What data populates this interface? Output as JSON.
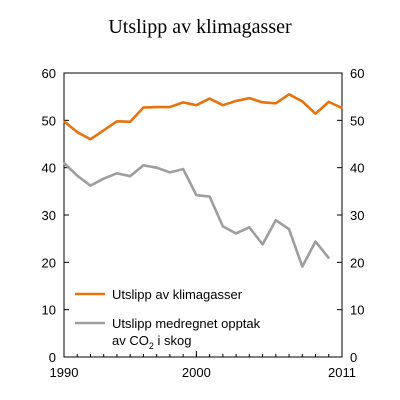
{
  "chart_data": {
    "type": "line",
    "title": "Utslipp av klimagasser",
    "xlim": [
      1990,
      2011
    ],
    "ylim": [
      0,
      60
    ],
    "grid": false,
    "legend_placement": "bottom-left",
    "x_ticks": [
      1990,
      2000,
      2011
    ],
    "y_ticks": [
      0,
      10,
      20,
      30,
      40,
      50,
      60
    ],
    "secondary_y_axis": true,
    "series": [
      {
        "name": "Utslipp av klimagasser",
        "color": "#e8730d",
        "x": [
          1990,
          1991,
          1992,
          1993,
          1994,
          1995,
          1996,
          1997,
          1998,
          1999,
          2000,
          2001,
          2002,
          2003,
          2004,
          2005,
          2006,
          2007,
          2008,
          2009,
          2010,
          2011
        ],
        "values": [
          49.8,
          47.5,
          46.0,
          47.9,
          49.8,
          49.7,
          52.7,
          52.8,
          52.8,
          53.8,
          53.2,
          54.6,
          53.2,
          54.1,
          54.7,
          53.8,
          53.6,
          55.5,
          54.0,
          51.4,
          53.9,
          52.6
        ]
      },
      {
        "name": "Utslipp medregnet opptak av CO2 i skog",
        "color": "#9e9e9e",
        "x": [
          1990,
          1991,
          1992,
          1993,
          1994,
          1995,
          1996,
          1997,
          1998,
          1999,
          2000,
          2001,
          2002,
          2003,
          2004,
          2005,
          2006,
          2007,
          2008,
          2009,
          2010,
          2011
        ],
        "values": [
          41.0,
          38.3,
          36.2,
          37.7,
          38.8,
          38.2,
          40.5,
          40.0,
          39.0,
          39.7,
          34.2,
          33.9,
          27.6,
          26.1,
          27.4,
          23.8,
          28.9,
          27.0,
          19.1,
          24.4,
          20.9,
          null
        ]
      }
    ],
    "legend": [
      {
        "lines": [
          "Utslipp av klimagasser"
        ]
      },
      {
        "lines": [
          "Utslipp medregnet opptak",
          "av CO",
          "2",
          " i skog"
        ]
      }
    ]
  }
}
